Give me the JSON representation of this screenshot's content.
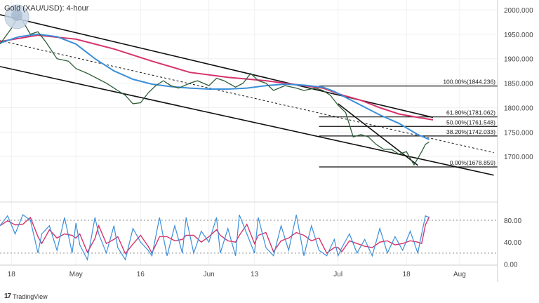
{
  "chart_data": {
    "type": "line",
    "title": "Gold (XAU/USD): 4-hour",
    "x_ticks": [
      {
        "t": 3,
        "label": "18"
      },
      {
        "t": 20,
        "label": "May"
      },
      {
        "t": 37,
        "label": "16"
      },
      {
        "t": 55,
        "label": "Jun"
      },
      {
        "t": 67,
        "label": "13"
      },
      {
        "t": 89,
        "label": "Jul"
      },
      {
        "t": 107,
        "label": "18"
      },
      {
        "t": 121,
        "label": "Aug"
      }
    ],
    "x_range": [
      0,
      131
    ],
    "price_axis": {
      "ylim": [
        1610,
        2020
      ],
      "ticks": [
        2000.0,
        1950.0,
        1900.0,
        1850.0,
        1800.0,
        1750.0,
        1700.0
      ]
    },
    "stoch_axis": {
      "ylim": [
        -2,
        112
      ],
      "ticks": [
        80.0,
        40.0,
        0.0
      ],
      "ref_lines": [
        80,
        20
      ]
    },
    "fib_levels": [
      {
        "label": "100.00%(1844.236)",
        "value": 1844.236
      },
      {
        "label": "61.80%(1781.062)",
        "value": 1781.062
      },
      {
        "label": "50.00%(1761.548)",
        "value": 1761.548
      },
      {
        "label": "38.20%(1742.033)",
        "value": 1742.033
      },
      {
        "label": "0.00%(1678.859)",
        "value": 1678.859
      }
    ],
    "fib_x_start": 84,
    "channel": {
      "upper": [
        [
          0,
          1990
        ],
        [
          114,
          1780
        ]
      ],
      "lower": [
        [
          0,
          1884
        ],
        [
          130,
          1662
        ]
      ],
      "middle": [
        [
          0,
          1937
        ],
        [
          130,
          1708
        ]
      ]
    },
    "trend_line": [
      [
        89,
        1808
      ],
      [
        110,
        1682
      ]
    ],
    "price": {
      "color": "#2f5f3a",
      "t": [
        0,
        3,
        5,
        8,
        10,
        12,
        15,
        18,
        20,
        23,
        26,
        28,
        30,
        33,
        35,
        37,
        39,
        41,
        43,
        45,
        47,
        50,
        52,
        55,
        57,
        59,
        62,
        64,
        66,
        68,
        70,
        72,
        75,
        78,
        80,
        83,
        85,
        87,
        89,
        91,
        93,
        95,
        97,
        99,
        101,
        103,
        105,
        107,
        109,
        111,
        112,
        113
      ],
      "v": [
        1930,
        1962,
        1990,
        1950,
        1955,
        1935,
        1900,
        1895,
        1880,
        1870,
        1858,
        1850,
        1840,
        1825,
        1808,
        1810,
        1830,
        1845,
        1855,
        1845,
        1840,
        1850,
        1855,
        1845,
        1860,
        1855,
        1842,
        1850,
        1870,
        1855,
        1850,
        1835,
        1845,
        1840,
        1835,
        1840,
        1835,
        1825,
        1805,
        1790,
        1740,
        1745,
        1740,
        1725,
        1715,
        1715,
        1705,
        1710,
        1683,
        1710,
        1725,
        1730
      ]
    },
    "ma_slow": {
      "name": "",
      "color": "#d6336c",
      "t": [
        0,
        10,
        20,
        30,
        40,
        50,
        60,
        70,
        80,
        85,
        90,
        95,
        100,
        105,
        110,
        114
      ],
      "v": [
        1935,
        1948,
        1940,
        1920,
        1895,
        1872,
        1862,
        1855,
        1845,
        1840,
        1826,
        1815,
        1800,
        1787,
        1780,
        1775
      ]
    },
    "ma_fast": {
      "name": "",
      "color": "#3b8fd9",
      "t": [
        0,
        5,
        10,
        15,
        20,
        25,
        30,
        35,
        40,
        45,
        50,
        55,
        60,
        65,
        70,
        75,
        80,
        85,
        88,
        90,
        95,
        100,
        105,
        110,
        113
      ],
      "v": [
        1932,
        1945,
        1950,
        1945,
        1930,
        1900,
        1875,
        1858,
        1848,
        1843,
        1840,
        1838,
        1838,
        1840,
        1845,
        1848,
        1846,
        1842,
        1833,
        1825,
        1805,
        1785,
        1768,
        1745,
        1735
      ]
    },
    "stoch": {
      "k_color": "#3b8fd9",
      "d_color": "#d6336c",
      "t": [
        0,
        2,
        4,
        6,
        8,
        10,
        11,
        13,
        15,
        17,
        19,
        20,
        21,
        23,
        25,
        26,
        28,
        30,
        31,
        33,
        35,
        37,
        39,
        40,
        42,
        44,
        46,
        48,
        49,
        51,
        53,
        55,
        57,
        58,
        60,
        62,
        63,
        65,
        67,
        68,
        70,
        72,
        74,
        76,
        78,
        80,
        82,
        84,
        86,
        88,
        89,
        90,
        92,
        94,
        96,
        98,
        100,
        102,
        104,
        106,
        108,
        110,
        111,
        112,
        113
      ],
      "v": [
        70,
        88,
        55,
        90,
        80,
        20,
        55,
        70,
        25,
        85,
        20,
        75,
        35,
        8,
        85,
        55,
        20,
        70,
        30,
        8,
        65,
        40,
        25,
        15,
        85,
        15,
        70,
        20,
        85,
        20,
        60,
        40,
        85,
        20,
        65,
        15,
        90,
        55,
        20,
        85,
        30,
        15,
        70,
        25,
        90,
        15,
        70,
        25,
        15,
        45,
        15,
        30,
        55,
        20,
        45,
        15,
        65,
        20,
        50,
        25,
        60,
        20,
        55,
        88,
        85
      ]
    }
  }
}
